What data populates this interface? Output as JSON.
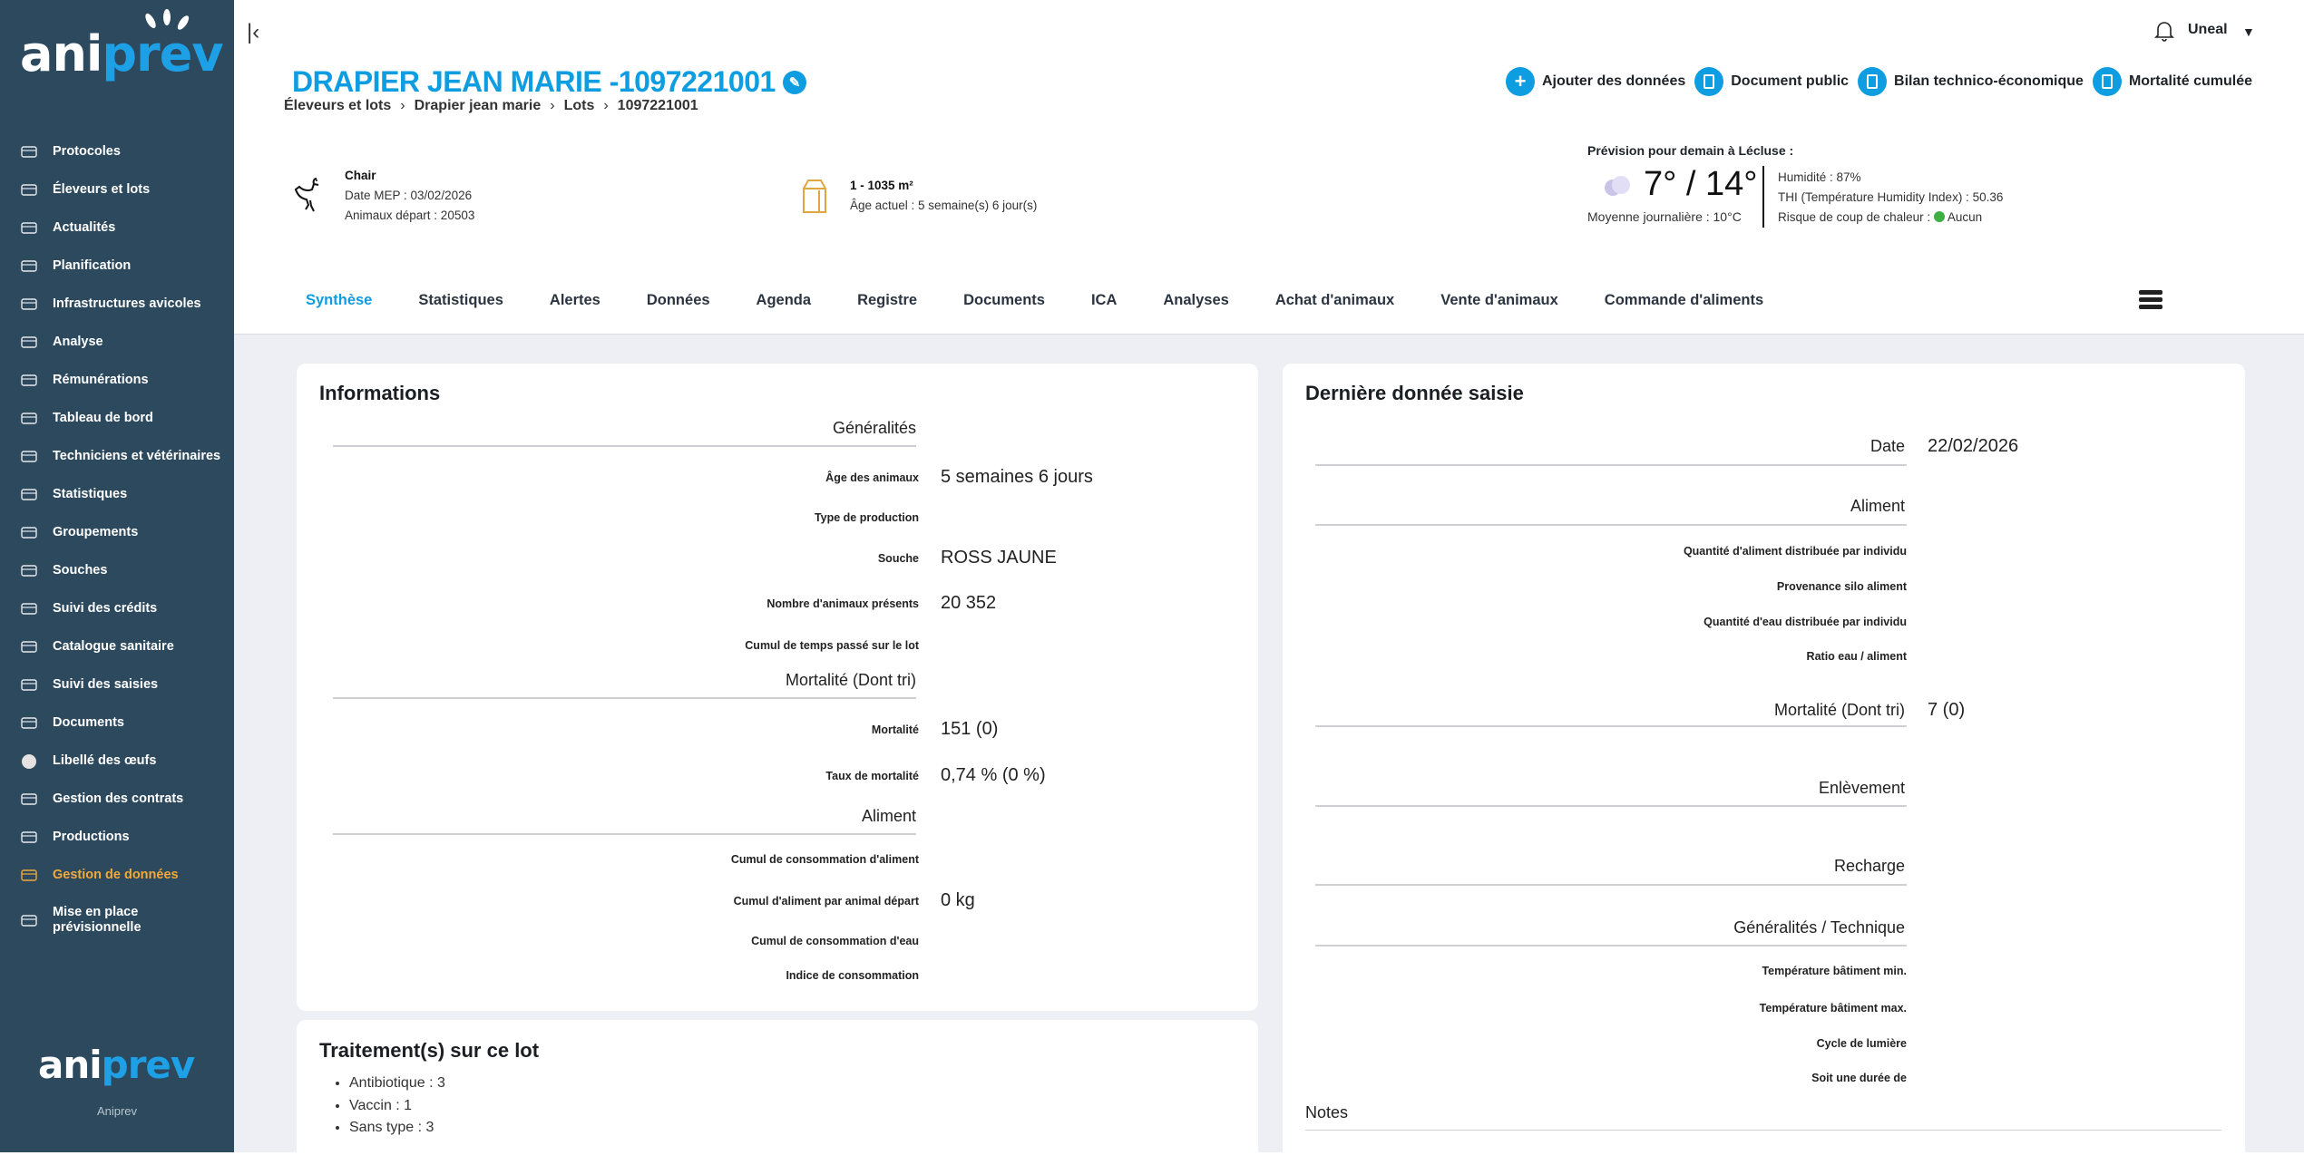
{
  "brand": {
    "logo_left": "ani",
    "logo_right": "prev",
    "footer_name": "Aniprev"
  },
  "sidebar": {
    "items": [
      {
        "label": "Protocoles",
        "icon": "calendar-icon"
      },
      {
        "label": "Éleveurs et lots",
        "icon": "user-icon"
      },
      {
        "label": "Actualités",
        "icon": "newspaper-icon"
      },
      {
        "label": "Planification",
        "icon": "calendar-icon"
      },
      {
        "label": "Infrastructures avicoles",
        "icon": "building-icon"
      },
      {
        "label": "Analyse",
        "icon": "line-chart-icon"
      },
      {
        "label": "Rémunérations",
        "icon": "coins-icon"
      },
      {
        "label": "Tableau de bord",
        "icon": "calendar-icon"
      },
      {
        "label": "Techniciens et vétérinaires",
        "icon": "user-gear-icon"
      },
      {
        "label": "Statistiques",
        "icon": "bar-chart-icon"
      },
      {
        "label": "Groupements",
        "icon": "layers-icon"
      },
      {
        "label": "Souches",
        "icon": "note-icon"
      },
      {
        "label": "Suivi des crédits",
        "icon": "coins-icon"
      },
      {
        "label": "Catalogue sanitaire",
        "icon": "tray-icon"
      },
      {
        "label": "Suivi des saisies",
        "icon": "clipboard-icon"
      },
      {
        "label": "Documents",
        "icon": "folder-icon"
      },
      {
        "label": "Libellé des œufs",
        "icon": "egg-icon"
      },
      {
        "label": "Gestion des contrats",
        "icon": "tray-icon"
      },
      {
        "label": "Productions",
        "icon": "sitemap-icon"
      },
      {
        "label": "Gestion de données",
        "icon": "import-icon",
        "active": true
      },
      {
        "label": "Mise en place prévisionnelle",
        "icon": "tray-icon"
      }
    ],
    "active_color": "#f2a93b",
    "bg_color": "#2c495e"
  },
  "header": {
    "user": "Uneal",
    "title": "DRAPIER JEAN MARIE -1097221001",
    "breadcrumb": [
      "Éleveurs et lots",
      "Drapier jean marie",
      "Lots",
      "1097221001"
    ],
    "actions": [
      {
        "label": "Ajouter des données",
        "icon": "plus-icon"
      },
      {
        "label": "Document public",
        "icon": "document-icon"
      },
      {
        "label": "Bilan technico-économique",
        "icon": "document-icon"
      },
      {
        "label": "Mortalité cumulée",
        "icon": "document-icon"
      }
    ],
    "accent": "#0d9de0"
  },
  "lot": {
    "type": "Chair",
    "date_mep": "Date MEP : 03/02/2026",
    "animaux_depart": "Animaux départ : 20503",
    "batiment": "1 - 1035 m²",
    "age": "Âge actuel : 5 semaine(s) 6 jour(s)"
  },
  "weather": {
    "title": "Prévision pour demain à Lécluse :",
    "temp": "7° / 14°",
    "average": "Moyenne journalière : 10°C",
    "humidity": "Humidité : 87%",
    "thi": "THI (Température Humidity Index) : 50.36",
    "heat_risk_label": "Risque de coup de chaleur :",
    "heat_risk_value": "Aucun",
    "heat_risk_color": "#3cb043"
  },
  "tabs": [
    {
      "label": "Synthèse",
      "active": true
    },
    {
      "label": "Statistiques"
    },
    {
      "label": "Alertes"
    },
    {
      "label": "Données"
    },
    {
      "label": "Agenda"
    },
    {
      "label": "Registre"
    },
    {
      "label": "Documents"
    },
    {
      "label": "ICA"
    },
    {
      "label": "Analyses"
    },
    {
      "label": "Achat d'animaux"
    },
    {
      "label": "Vente d'animaux"
    },
    {
      "label": "Commande d'aliments"
    }
  ],
  "informations": {
    "title": "Informations",
    "sections": [
      {
        "title": "Généralités",
        "rows": [
          {
            "label": "Âge des animaux",
            "value": "5 semaines 6 jours"
          },
          {
            "label": "Type de production",
            "value": ""
          },
          {
            "label": "Souche",
            "value": "ROSS JAUNE"
          },
          {
            "label": "Nombre d'animaux présents",
            "value": "20 352"
          },
          {
            "label": "Cumul de temps passé sur le lot",
            "value": ""
          }
        ]
      },
      {
        "title": "Mortalité (Dont tri)",
        "rows": [
          {
            "label": "Mortalité",
            "value": "151 (0)"
          },
          {
            "label": "Taux de mortalité",
            "value": "0,74 % (0 %)"
          }
        ]
      },
      {
        "title": "Aliment",
        "rows": [
          {
            "label": "Cumul de consommation d'aliment",
            "value": ""
          },
          {
            "label": "Cumul d'aliment par animal départ",
            "value": "0 kg"
          },
          {
            "label": "Cumul de consommation d'eau",
            "value": ""
          },
          {
            "label": "Indice de consommation",
            "value": ""
          }
        ]
      }
    ]
  },
  "traitements": {
    "title": "Traitement(s) sur ce lot",
    "items": [
      "Antibiotique : 3",
      "Vaccin : 1",
      "Sans type : 3"
    ]
  },
  "derniere": {
    "title": "Dernière donnée saisie",
    "date_label": "Date",
    "date_value": "22/02/2026",
    "aliment_title": "Aliment",
    "aliment_rows": [
      "Quantité d'aliment distribuée par individu",
      "Provenance silo aliment",
      "Quantité d'eau distribuée par individu",
      "Ratio eau / aliment"
    ],
    "mortalite_label": "Mortalité (Dont tri)",
    "mortalite_value": "7 (0)",
    "enlevement": "Enlèvement",
    "recharge": "Recharge",
    "tech_title": "Généralités / Technique",
    "tech_rows": [
      "Température bâtiment min.",
      "Température bâtiment max.",
      "Cycle de lumière",
      "Soit une durée de"
    ],
    "notes": "Notes"
  }
}
